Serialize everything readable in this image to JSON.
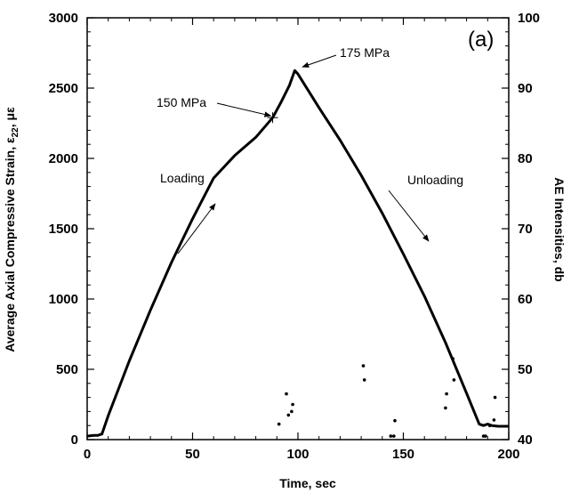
{
  "chart_data": {
    "type": "scatter",
    "panel_label": "(a)",
    "xlabel": "Time, sec",
    "ylabel": "Average Axial Compressive Strain, ε",
    "ylabel_sub": "22",
    "ylabel_unit": ", με",
    "y2label": "AE Intensities, db",
    "xlim": [
      0,
      200
    ],
    "ylim": [
      0,
      3000
    ],
    "y2lim": [
      40,
      100
    ],
    "xticks": [
      0,
      50,
      100,
      150,
      200
    ],
    "yticks": [
      0,
      500,
      1000,
      1500,
      2000,
      2500,
      3000
    ],
    "y2ticks": [
      40,
      50,
      60,
      70,
      80,
      90,
      100
    ],
    "grid": false,
    "series": [
      {
        "axis": "left",
        "style": "line",
        "x": [
          0,
          3,
          5,
          7,
          10,
          20,
          30,
          40,
          50,
          60,
          70,
          80,
          88,
          92,
          96,
          98.5,
          100,
          110,
          120,
          130,
          140,
          150,
          160,
          170,
          180,
          186,
          188,
          190,
          192,
          195,
          200
        ],
        "y": [
          25,
          30,
          30,
          40,
          170,
          560,
          920,
          1260,
          1570,
          1860,
          2020,
          2150,
          2290,
          2400,
          2520,
          2625,
          2600,
          2360,
          2130,
          1880,
          1610,
          1320,
          1020,
          690,
          330,
          110,
          100,
          110,
          100,
          95,
          95
        ]
      },
      {
        "axis": "right",
        "style": "points",
        "x": [
          91,
          94.5,
          95.5,
          97,
          97.5,
          131,
          131.5,
          144,
          145.5,
          146,
          170,
          170.5,
          173.5,
          174,
          188,
          189,
          191,
          193,
          193.5
        ],
        "y": [
          42.2,
          46.5,
          43.5,
          44,
          45,
          50.5,
          48.5,
          40.5,
          40.5,
          42.7,
          44.5,
          46.5,
          51.5,
          48.5,
          40.5,
          40.5,
          42,
          42.8,
          46
        ]
      }
    ],
    "annotations": [
      {
        "text": "150 MPa",
        "x": 88,
        "y": 2290
      },
      {
        "text": "175 MPa",
        "x": 100,
        "y": 2625
      },
      {
        "text": "Loading",
        "x": 50,
        "y": 1600
      },
      {
        "text": "Unloading",
        "x": 160,
        "y": 1620
      }
    ]
  }
}
